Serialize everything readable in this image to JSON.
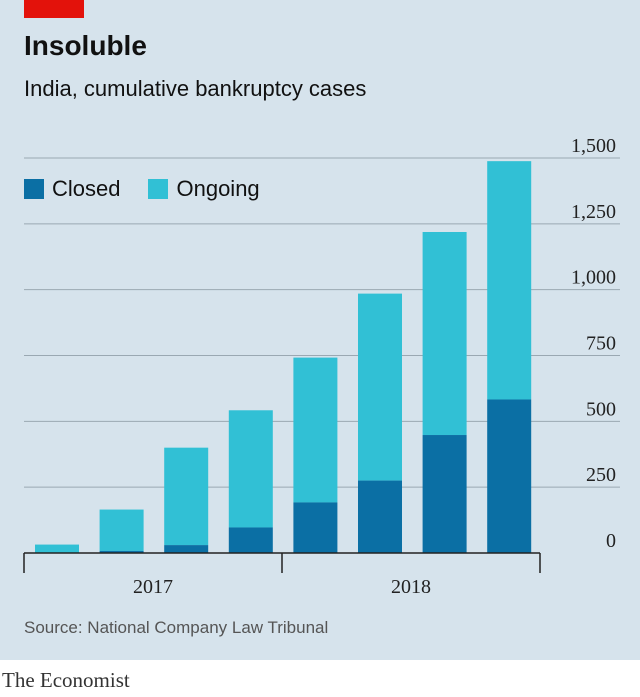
{
  "header": {
    "title": "Insoluble",
    "subtitle": "India, cumulative bankruptcy cases"
  },
  "legend": {
    "closed": "Closed",
    "ongoing": "Ongoing"
  },
  "colors": {
    "closed": "#0b6fa4",
    "ongoing": "#31c0d5",
    "background": "#d6e3ec",
    "brand_red": "#e3120b"
  },
  "chart_data": {
    "type": "bar",
    "stacked": true,
    "title": "Insoluble",
    "subtitle": "India, cumulative bankruptcy cases",
    "x_tick_labels": [
      "2017",
      "2018"
    ],
    "y_ticks": [
      0,
      250,
      500,
      750,
      1000,
      1250,
      1500
    ],
    "y_tick_labels": [
      "0",
      "250",
      "500",
      "750",
      "1,000",
      "1,250",
      "1,500"
    ],
    "ylim": [
      0,
      1500
    ],
    "grid": true,
    "legend_position": "top-left",
    "series": [
      {
        "name": "Closed",
        "values": [
          0,
          8,
          30,
          97,
          192,
          275,
          448,
          583
        ]
      },
      {
        "name": "Ongoing",
        "values": [
          32,
          157,
          370,
          445,
          550,
          710,
          771,
          905
        ]
      }
    ]
  },
  "footer": {
    "source": "Source: National Company Law Tribunal",
    "brand": "The Economist"
  }
}
